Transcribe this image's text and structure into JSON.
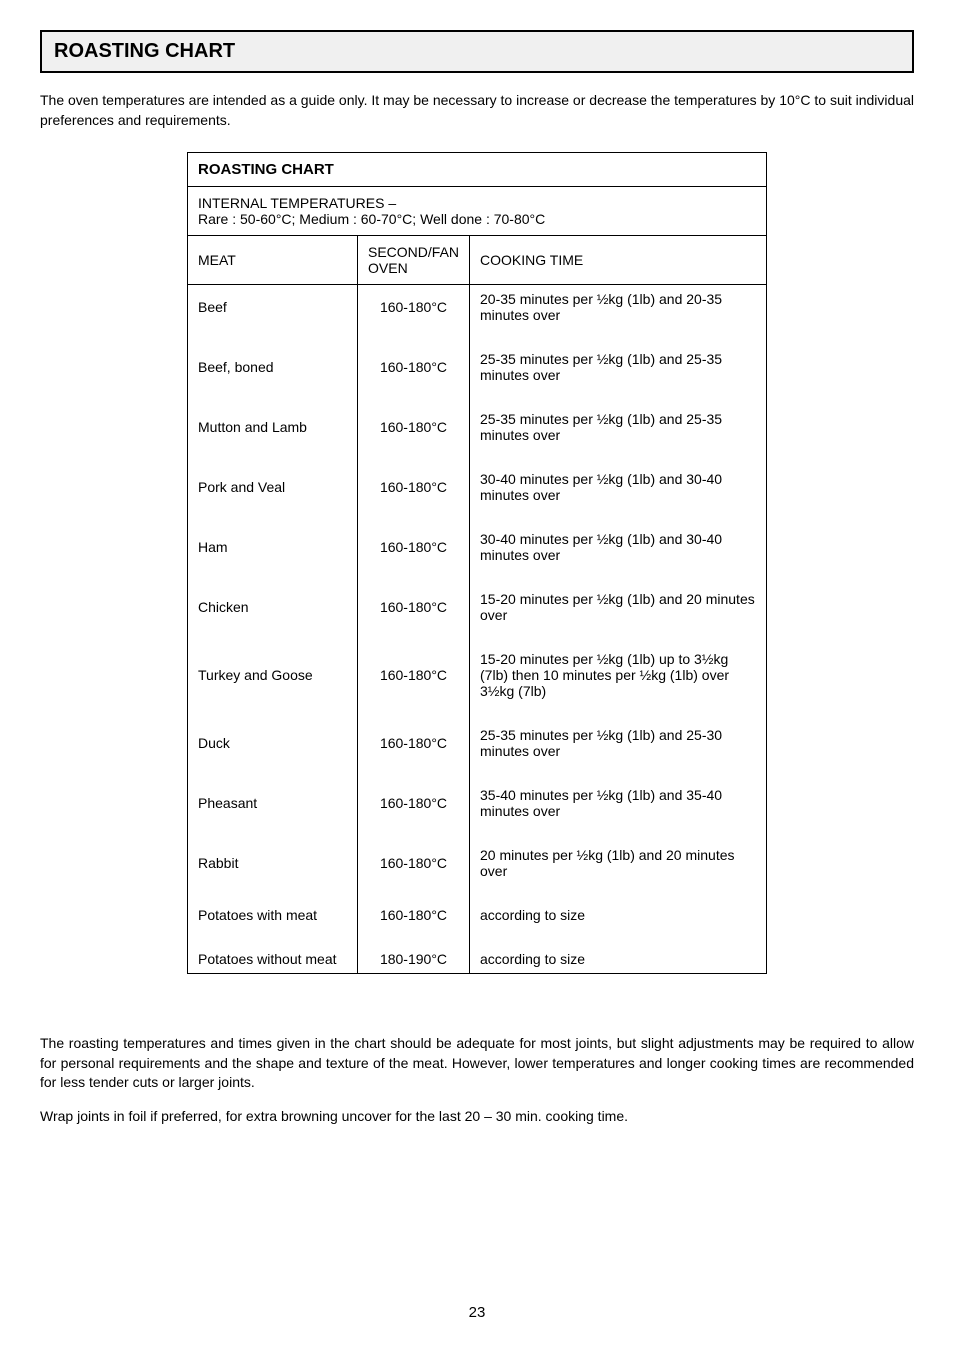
{
  "page": {
    "title": "ROASTING CHART",
    "intro": "The oven temperatures are intended as a guide only. It may be necessary to increase or decrease the temperatures by 10°C to suit individual preferences and requirements.",
    "table": {
      "title": "ROASTING CHART",
      "sub_header": "INTERNAL TEMPERATURES –\nRare : 50-60°C; Medium : 60-70°C; Well done : 70-80°C",
      "col_meat": "MEAT",
      "col_temp": "SECOND/FAN OVEN",
      "col_time": "COOKING TIME",
      "rows": [
        {
          "meat": "Beef",
          "temp": "160-180°C",
          "time": "20-35 minutes per ½kg (1lb) and 20-35 minutes over"
        },
        {
          "meat": "Beef, boned",
          "temp": "160-180°C",
          "time": "25-35 minutes per ½kg (1lb) and 25-35 minutes over"
        },
        {
          "meat": "Mutton and Lamb",
          "temp": "160-180°C",
          "time": "25-35 minutes per ½kg (1lb) and 25-35 minutes over"
        },
        {
          "meat": "Pork and Veal",
          "temp": "160-180°C",
          "time": "30-40 minutes per ½kg (1lb) and 30-40 minutes over"
        },
        {
          "meat": "Ham",
          "temp": "160-180°C",
          "time": "30-40 minutes per ½kg (1lb) and 30-40 minutes over"
        },
        {
          "meat": "Chicken",
          "temp": "160-180°C",
          "time": "15-20 minutes per ½kg (1lb) and 20 minutes over"
        },
        {
          "meat": "Turkey and Goose",
          "temp": "160-180°C",
          "time": "15-20 minutes per ½kg (1lb) up to 3½kg (7lb) then 10 minutes per ½kg (1lb) over 3½kg (7lb)"
        },
        {
          "meat": "Duck",
          "temp": "160-180°C",
          "time": "25-35 minutes per ½kg (1lb) and 25-30 minutes over"
        },
        {
          "meat": "Pheasant",
          "temp": "160-180°C",
          "time": "35-40 minutes per ½kg (1lb) and 35-40 minutes over"
        },
        {
          "meat": "Rabbit",
          "temp": "160-180°C",
          "time": "20 minutes per ½kg (1lb) and 20 minutes over"
        },
        {
          "meat": "Potatoes with meat",
          "temp": "160-180°C",
          "time": "according to size"
        },
        {
          "meat": "Potatoes without meat",
          "temp": "180-190°C",
          "time": "according to size"
        }
      ]
    },
    "outro1": "The roasting temperatures and times given in the chart should be adequate for most joints, but slight adjustments may be required to allow for personal requirements and the shape and texture of the meat.  However, lower temperatures and longer cooking times are recommended for less tender cuts or larger joints.",
    "outro2": "Wrap joints in foil if preferred, for extra browning uncover for the last 20 – 30 min. cooking time.",
    "page_number": "23"
  },
  "style": {
    "colors": {
      "title_bg": "#f0f0f0",
      "border": "#000000",
      "text": "#000000",
      "page_bg": "#ffffff"
    },
    "fonts": {
      "title_size_pt": 15,
      "body_size_pt": 10.5,
      "family": "Arial"
    }
  }
}
